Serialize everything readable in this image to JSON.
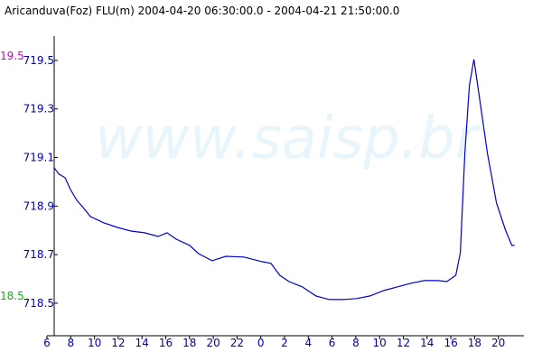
{
  "chart_data": {
    "type": "line",
    "title": "Aricanduva(Foz) FLU(m) 2004-04-20 06:30:00.0 - 2004-04-21 21:50:00.0",
    "watermark": "www.saisp.br",
    "annotations": [
      {
        "text": "19.5",
        "color": "#cc00cc"
      },
      {
        "text": "18.5",
        "color": "#00bb00"
      }
    ],
    "x": [
      6.61,
      6.99,
      7.52,
      7.98,
      8.51,
      9.04,
      9.65,
      10.79,
      11.93,
      13.07,
      14.21,
      15.35,
      16.11,
      16.87,
      18.01,
      18.77,
      19.91,
      21.05,
      22.57,
      24.09,
      24.85,
      25.6,
      26.37,
      27.5,
      28.64,
      29.78,
      30.92,
      32.06,
      33.2,
      34.34,
      35.48,
      36.62,
      37.76,
      38.9,
      39.66,
      40.42,
      40.8,
      41.18,
      41.56,
      41.94,
      42.32,
      43.08,
      43.84,
      44.6,
      45.13,
      45.36
    ],
    "series": [
      {
        "color": "#0000cc",
        "values": [
          719.058,
          719.032,
          719.017,
          718.968,
          718.924,
          718.894,
          718.857,
          718.831,
          718.812,
          718.797,
          718.79,
          718.775,
          718.79,
          718.764,
          718.738,
          718.704,
          718.675,
          718.693,
          718.69,
          718.671,
          718.664,
          718.615,
          718.589,
          718.567,
          718.53,
          718.515,
          718.515,
          718.519,
          718.53,
          718.552,
          718.567,
          718.582,
          718.593,
          718.593,
          718.589,
          718.615,
          718.708,
          719.117,
          719.396,
          719.504,
          719.377,
          719.117,
          718.913,
          718.801,
          718.738,
          718.738
        ]
      }
    ],
    "xlim": [
      6,
      46
    ],
    "xticks": [
      6,
      8,
      10,
      12,
      14,
      16,
      18,
      20,
      22,
      {
        "value": 24,
        "label": "0"
      },
      {
        "value": 26,
        "label": "2"
      },
      {
        "value": 28,
        "label": "4"
      },
      {
        "value": 30,
        "label": "6"
      },
      {
        "value": 32,
        "label": "8"
      },
      {
        "value": 34,
        "label": "10"
      },
      {
        "value": 36,
        "label": "12"
      },
      {
        "value": 38,
        "label": "14"
      },
      {
        "value": 40,
        "label": "16"
      },
      {
        "value": 42,
        "label": "18"
      },
      {
        "value": 44,
        "label": "20"
      }
    ],
    "ylim": [
      718.366,
      719.6
    ],
    "yticks": [
      718.5,
      718.7,
      718.9,
      719.1,
      719.3,
      719.5
    ]
  }
}
